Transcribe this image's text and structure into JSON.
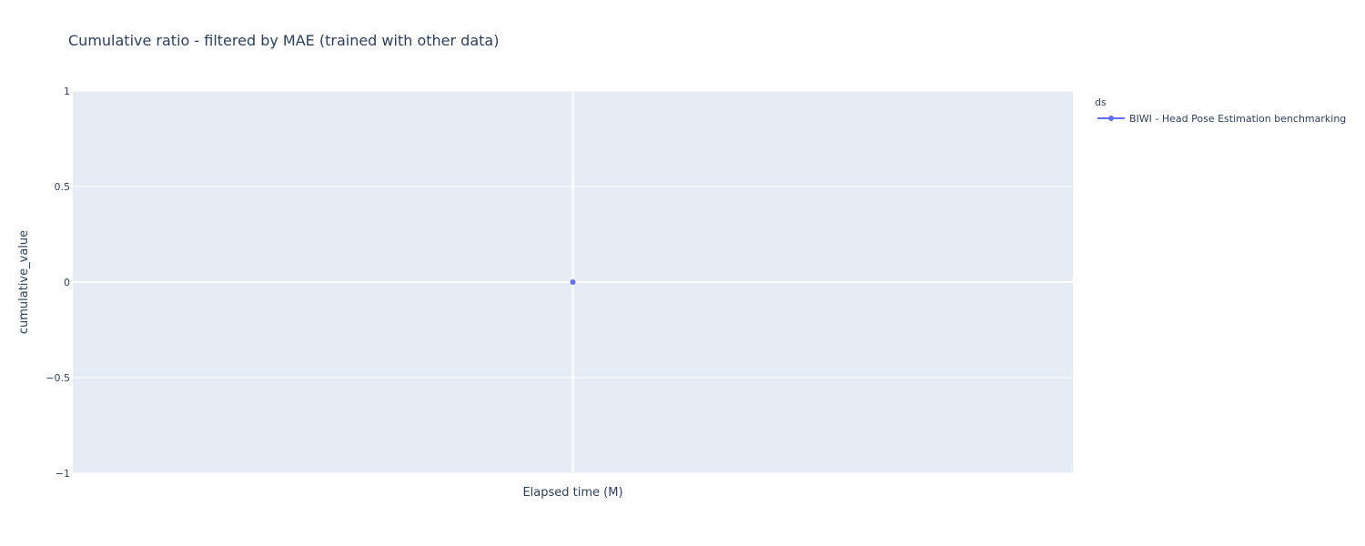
{
  "chart_data": {
    "type": "scatter",
    "title": "Cumulative ratio - filtered by MAE (trained with other data)",
    "xlabel": "Elapsed time (M)",
    "ylabel": "cumulative_value",
    "ylim": [
      -1,
      1
    ],
    "yticks": [
      1,
      0.5,
      0,
      -0.5,
      -1
    ],
    "ytick_labels": [
      "1",
      "0.5",
      "0",
      "−0.5",
      "−1"
    ],
    "grid": true,
    "legend": {
      "title": "ds",
      "position": "top-right"
    },
    "series": [
      {
        "name": "BIWI - Head Pose Estimation benchmarking",
        "color": "#636efa",
        "points": [
          {
            "x": null,
            "y": 0
          }
        ]
      }
    ]
  },
  "colors": {
    "plot_bg": "#e5ecf6",
    "grid": "#ffffff",
    "text": "#2a3f5f",
    "series": "#636efa"
  }
}
